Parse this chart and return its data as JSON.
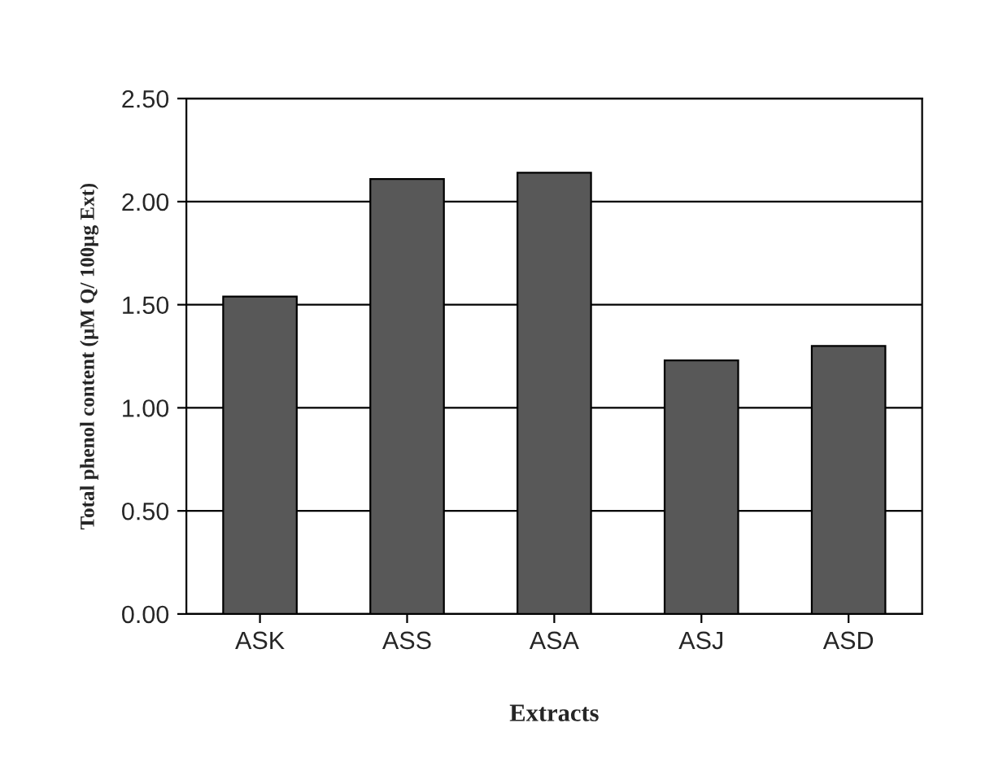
{
  "chart_data": {
    "type": "bar",
    "xlabel": "Extracts",
    "ylabel": "Total phenol content (µM Q/ 100µg Ext)",
    "categories": [
      "ASK",
      "ASS",
      "ASA",
      "ASJ",
      "ASD"
    ],
    "values": [
      1.54,
      2.11,
      2.14,
      1.23,
      1.3
    ],
    "color": "#585858",
    "ylim": [
      0,
      2.5
    ],
    "yticks": [
      {
        "value": 0,
        "label": "0.00"
      },
      {
        "value": 0.5,
        "label": "0.50"
      },
      {
        "value": 1.0,
        "label": "1.00"
      },
      {
        "value": 1.5,
        "label": "1.50"
      },
      {
        "value": 2.0,
        "label": "2.00"
      },
      {
        "value": 2.5,
        "label": "2.50"
      }
    ],
    "grid": "y"
  }
}
